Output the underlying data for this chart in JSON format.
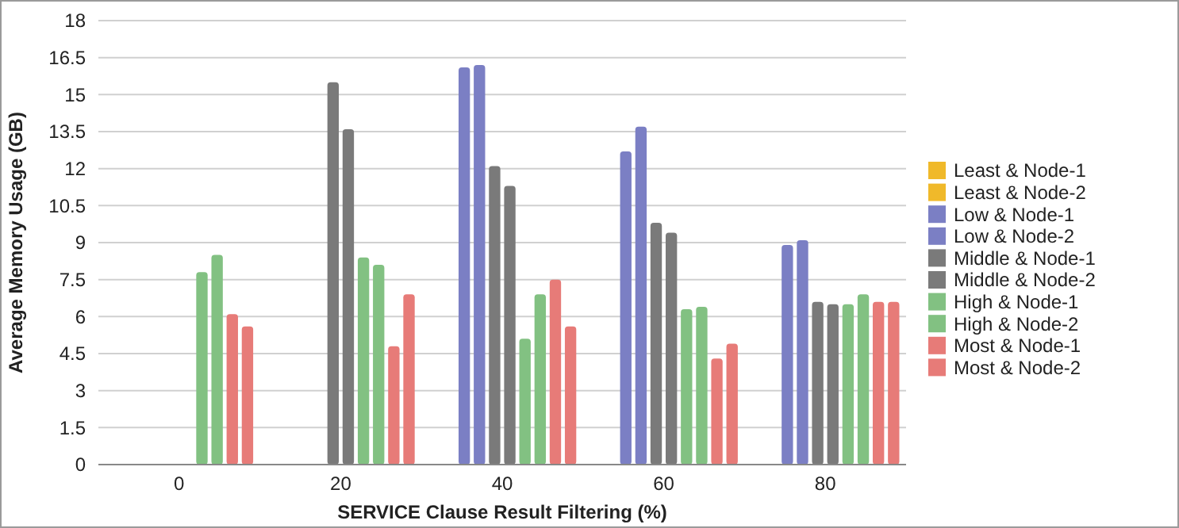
{
  "chart_data": {
    "type": "bar",
    "xlabel": "SERVICE Clause Result Filtering (%)",
    "ylabel": "Average Memory Usage (GB)",
    "categories": [
      "0",
      "20",
      "40",
      "60",
      "80"
    ],
    "series": [
      {
        "name": "Least & Node-1",
        "color": "#f0b92a",
        "values": [
          null,
          null,
          null,
          null,
          null
        ]
      },
      {
        "name": "Least & Node-2",
        "color": "#f0b92a",
        "values": [
          null,
          null,
          null,
          null,
          null
        ]
      },
      {
        "name": "Low & Node-1",
        "color": "#7b7fc4",
        "values": [
          null,
          null,
          16.1,
          12.7,
          8.9
        ]
      },
      {
        "name": "Low & Node-2",
        "color": "#7b7fc4",
        "values": [
          null,
          null,
          16.2,
          13.7,
          9.1
        ]
      },
      {
        "name": "Middle & Node-1",
        "color": "#7a7a7a",
        "values": [
          null,
          15.5,
          12.1,
          9.8,
          6.6
        ]
      },
      {
        "name": "Middle & Node-2",
        "color": "#7a7a7a",
        "values": [
          null,
          13.6,
          11.3,
          9.4,
          6.5
        ]
      },
      {
        "name": "High & Node-1",
        "color": "#82c182",
        "values": [
          7.8,
          8.4,
          5.1,
          6.3,
          6.5
        ]
      },
      {
        "name": "High & Node-2",
        "color": "#82c182",
        "values": [
          8.5,
          8.1,
          6.9,
          6.4,
          6.9
        ]
      },
      {
        "name": "Most & Node-1",
        "color": "#e77b78",
        "values": [
          6.1,
          4.8,
          7.5,
          4.3,
          6.6
        ]
      },
      {
        "name": "Most & Node-2",
        "color": "#e77b78",
        "values": [
          5.6,
          6.9,
          5.6,
          4.9,
          6.6
        ]
      }
    ],
    "ylim": [
      0,
      18
    ],
    "yticks": [
      0,
      1.5,
      3,
      4.5,
      6,
      7.5,
      9,
      10.5,
      12,
      13.5,
      15,
      16.5,
      18
    ],
    "grid": "y",
    "legend": "right"
  }
}
